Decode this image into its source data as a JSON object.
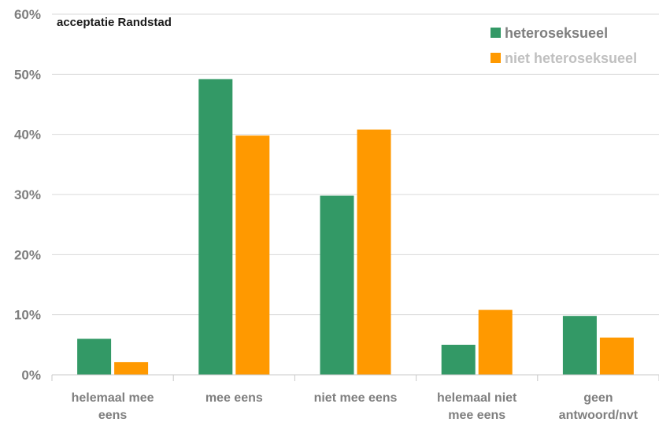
{
  "chart_data": {
    "type": "bar",
    "title": "acceptatie Randstad",
    "categories": [
      [
        "helemaal mee",
        "eens"
      ],
      [
        "mee eens"
      ],
      [
        "niet mee eens"
      ],
      [
        "helemaal niet",
        "mee eens"
      ],
      [
        "geen",
        "antwoord/nvt"
      ]
    ],
    "series": [
      {
        "name": "heteroseksueel",
        "color": "#339966",
        "legend_text_color": "#7f7f7f",
        "values": [
          6,
          49.2,
          29.8,
          5,
          9.8
        ]
      },
      {
        "name": "niet heteroseksueel",
        "color": "#ff9900",
        "legend_text_color": "#c0c0c0",
        "values": [
          2.1,
          39.8,
          40.8,
          10.8,
          6.2
        ]
      }
    ],
    "ylim": [
      0,
      60
    ],
    "yticks": [
      0,
      10,
      20,
      30,
      40,
      50,
      60
    ],
    "ytick_format": "percent",
    "grid": true,
    "legend_position": "top-right"
  }
}
